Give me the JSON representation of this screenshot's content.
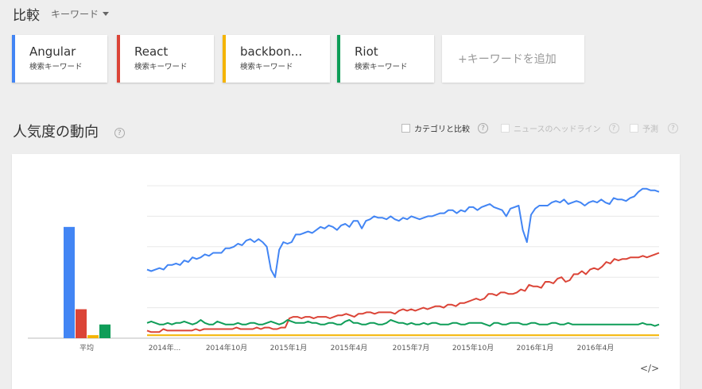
{
  "header": {
    "title": "比較",
    "subtitle": "キーワード"
  },
  "keywords": [
    {
      "name": "Angular",
      "type": "検索キーワード",
      "color": "#4285f4"
    },
    {
      "name": "React",
      "type": "検索キーワード",
      "color": "#db4437"
    },
    {
      "name": "backbon...",
      "type": "検索キーワード",
      "color": "#f4b400"
    },
    {
      "name": "Riot",
      "type": "検索キーワード",
      "color": "#0f9d58"
    }
  ],
  "add_keyword": "+キーワードを追加",
  "section": {
    "title": "人気度の動向",
    "help": "?"
  },
  "options": [
    {
      "label": "カテゴリと比較",
      "help": "?"
    },
    {
      "label": "ニュースのヘッドライン",
      "help": "?"
    },
    {
      "label": "予測",
      "help": "?"
    }
  ],
  "embed_label": "</>",
  "chart_data": {
    "type": "line",
    "x_ticks": [
      "2014年...",
      "2014年10月",
      "2015年1月",
      "2015年4月",
      "2015年7月",
      "2015年10月",
      "2016年1月",
      "2016年4月"
    ],
    "ylim": [
      0,
      100
    ],
    "averages": {
      "label": "平均",
      "values": [
        73,
        19,
        2,
        9
      ]
    },
    "series": [
      {
        "name": "Angular",
        "color": "#4285f4",
        "values": [
          45,
          44,
          45,
          46,
          45,
          48,
          48,
          49,
          48,
          51,
          50,
          53,
          52,
          53,
          55,
          54,
          56,
          56,
          56,
          59,
          59,
          60,
          62,
          61,
          64,
          65,
          63,
          65,
          63,
          60,
          45,
          40,
          58,
          63,
          62,
          63,
          68,
          68,
          69,
          70,
          69,
          71,
          73,
          72,
          74,
          73,
          71,
          74,
          75,
          73,
          77,
          77,
          72,
          77,
          78,
          80,
          79,
          79,
          78,
          80,
          78,
          77,
          79,
          78,
          80,
          79,
          78,
          79,
          80,
          80,
          81,
          82,
          82,
          84,
          84,
          82,
          84,
          83,
          86,
          86,
          84,
          86,
          87,
          88,
          86,
          85,
          84,
          80,
          85,
          86,
          87,
          71,
          63,
          81,
          85,
          87,
          87,
          87,
          89,
          90,
          89,
          91,
          88,
          89,
          90,
          89,
          87,
          89,
          90,
          89,
          91,
          89,
          88,
          92,
          91,
          91,
          90,
          92,
          93,
          96,
          98,
          98,
          97,
          97,
          96
        ]
      },
      {
        "name": "React",
        "color": "#db4437",
        "values": [
          5,
          4,
          4,
          4,
          6,
          5,
          5,
          5,
          5,
          5,
          5,
          5,
          6,
          5,
          6,
          6,
          6,
          6,
          6,
          6,
          6,
          6,
          7,
          6,
          6,
          6,
          6,
          7,
          6,
          7,
          7,
          6,
          6,
          7,
          7,
          13,
          14,
          14,
          13,
          14,
          14,
          13,
          14,
          14,
          14,
          13,
          14,
          15,
          15,
          16,
          15,
          14,
          16,
          16,
          17,
          17,
          16,
          17,
          17,
          17,
          17,
          16,
          18,
          19,
          18,
          19,
          18,
          19,
          20,
          19,
          20,
          21,
          21,
          20,
          22,
          22,
          21,
          23,
          23,
          24,
          25,
          26,
          25,
          26,
          29,
          29,
          28,
          30,
          30,
          29,
          29,
          30,
          32,
          31,
          35,
          34,
          34,
          33,
          37,
          37,
          36,
          39,
          40,
          37,
          38,
          42,
          42,
          44,
          42,
          45,
          46,
          45,
          47,
          50,
          49,
          52,
          51,
          52,
          52,
          53,
          53,
          53,
          54,
          53,
          54,
          55,
          56
        ]
      },
      {
        "name": "backbone.js",
        "color": "#f4b400",
        "values": [
          2,
          2,
          2,
          2,
          2,
          2,
          2,
          2,
          2,
          2,
          2,
          2,
          2,
          2,
          2,
          2,
          2,
          2,
          2,
          2,
          2,
          2,
          2,
          2,
          2,
          2,
          2,
          2,
          2,
          2,
          2,
          2,
          2,
          2,
          2,
          2,
          2,
          2,
          2,
          2,
          2,
          2,
          2,
          2,
          2,
          2,
          2,
          2,
          2,
          2,
          2,
          2,
          2,
          2,
          2,
          2,
          2,
          2,
          2,
          2,
          2,
          2,
          2,
          2,
          2,
          2,
          2,
          2,
          2,
          2,
          2,
          2,
          2,
          2,
          2,
          2,
          2,
          2,
          2,
          2,
          2,
          2,
          2,
          2,
          2,
          2,
          2,
          2,
          2,
          2,
          2,
          2,
          2,
          2,
          2,
          2,
          2,
          2,
          2,
          2,
          2,
          2,
          2,
          2,
          2,
          2,
          2,
          2,
          2,
          2,
          2,
          2,
          2,
          2,
          2,
          2,
          2,
          2,
          2,
          2,
          2,
          2,
          2,
          2,
          2,
          2,
          2,
          2,
          2
        ]
      },
      {
        "name": "Riot",
        "color": "#0f9d58",
        "values": [
          10,
          11,
          10,
          9,
          9,
          10,
          9,
          10,
          10,
          11,
          10,
          9,
          10,
          12,
          10,
          9,
          9,
          11,
          10,
          9,
          9,
          9,
          10,
          9,
          9,
          10,
          10,
          9,
          9,
          10,
          11,
          10,
          9,
          10,
          12,
          11,
          10,
          10,
          10,
          11,
          10,
          10,
          9,
          9,
          10,
          10,
          9,
          9,
          11,
          12,
          10,
          10,
          9,
          9,
          10,
          10,
          9,
          9,
          10,
          12,
          11,
          10,
          10,
          9,
          10,
          9,
          9,
          10,
          9,
          10,
          10,
          9,
          9,
          9,
          10,
          10,
          9,
          9,
          10,
          10,
          10,
          10,
          9,
          8,
          10,
          10,
          9,
          9,
          10,
          10,
          10,
          9,
          9,
          10,
          10,
          9,
          9,
          9,
          10,
          10,
          9,
          9,
          10,
          9,
          9,
          9,
          9,
          9,
          9,
          9,
          9,
          9,
          9,
          9,
          9,
          9,
          9,
          9,
          9,
          9,
          10,
          9,
          9,
          8,
          9
        ]
      }
    ]
  }
}
